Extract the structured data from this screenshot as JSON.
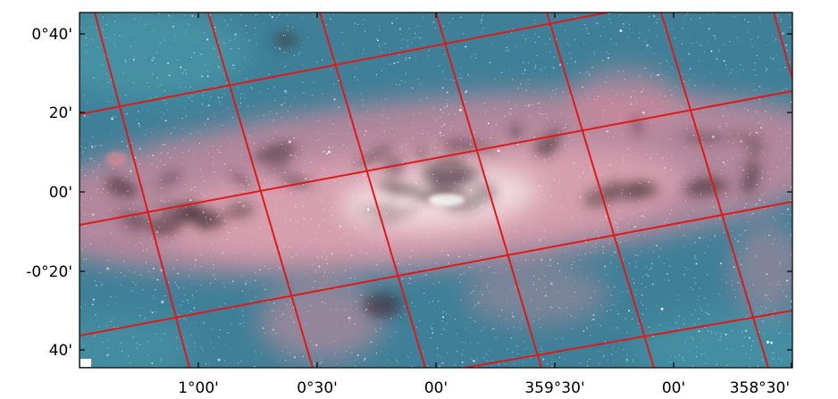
{
  "axes": {
    "y_tick_labels": [
      "0°40'",
      "20'",
      "00'",
      "-0°20'",
      "40'"
    ],
    "x_tick_labels": [
      "1°00'",
      "0°30'",
      "00'",
      "359°30'",
      "00'",
      "358°30'"
    ]
  },
  "colors": {
    "grid": "#e01818",
    "sky_blue": "#3f8098",
    "sky_teal": "#4a98a8",
    "nebula_pink": "#d88a9c",
    "core_glow": "#f6e2e6",
    "dust_dark": "#3c2a30",
    "frame": "#000000"
  }
}
